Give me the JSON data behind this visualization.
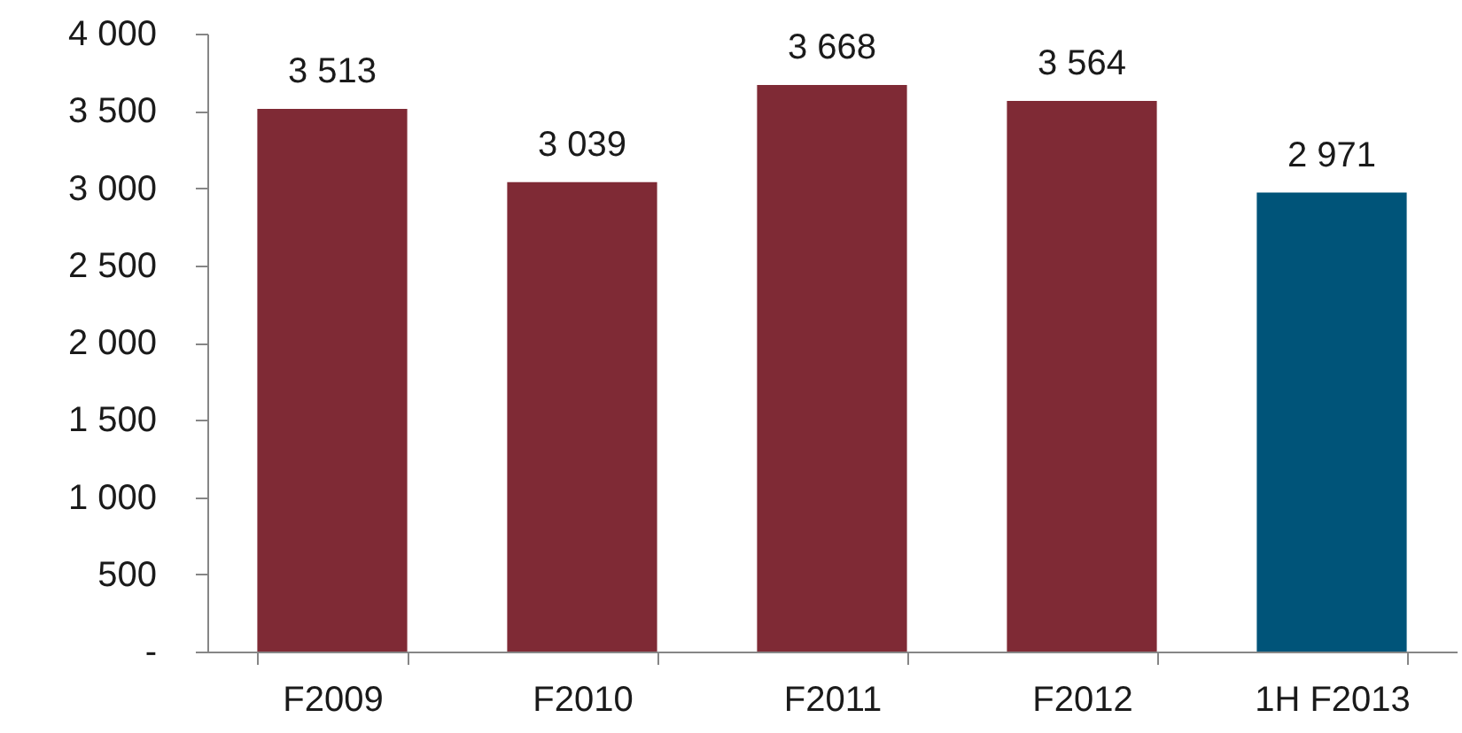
{
  "chart_data": {
    "type": "bar",
    "categories": [
      "F2009",
      "F2010",
      "F2011",
      "F2012",
      "1H F2013"
    ],
    "values": [
      3513,
      3039,
      3668,
      3564,
      2971
    ],
    "colors": [
      "#7f2a35",
      "#7f2a35",
      "#7f2a35",
      "#7f2a35",
      "#005479"
    ],
    "value_labels": [
      "3 513",
      "3 039",
      "3 668",
      "3 564",
      "2 971"
    ],
    "ylim": [
      0,
      4000
    ],
    "yticks": [
      {
        "value": 0,
        "label": "-"
      },
      500,
      {
        "value": 1000,
        "label": "1 000"
      },
      {
        "value": 1500,
        "label": "1 500"
      },
      {
        "value": 2000,
        "label": "2 000"
      },
      {
        "value": 2500,
        "label": "2 500"
      },
      {
        "value": 3000,
        "label": "3 000"
      },
      {
        "value": 3500,
        "label": "3 500"
      },
      {
        "value": 4000,
        "label": "4 000"
      }
    ]
  }
}
